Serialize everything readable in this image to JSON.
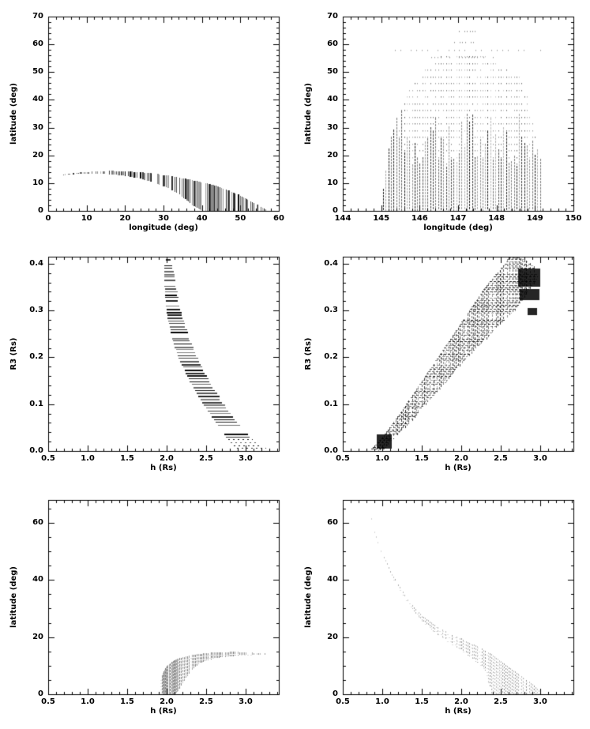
{
  "colors": {
    "foreground": "#000000",
    "background": "#ffffff"
  },
  "chart_data": [
    {
      "type": "scatter",
      "xlabel": "longitude (deg)",
      "ylabel": "latitude (deg)",
      "xlim": [
        0,
        60
      ],
      "ylim": [
        0,
        70
      ],
      "xticks": {
        "values": [
          0,
          10,
          20,
          30,
          40,
          50,
          60
        ],
        "labels": [
          "0",
          "10",
          "20",
          "30",
          "40",
          "50",
          "60"
        ],
        "minor": 2
      },
      "yticks": {
        "values": [
          0,
          10,
          20,
          30,
          40,
          50,
          60,
          70
        ],
        "labels": [
          "0",
          "10",
          "20",
          "30",
          "40",
          "50",
          "60",
          "70"
        ],
        "minor": 2
      },
      "regions": [
        {
          "style": "vband",
          "x": [
            4,
            8,
            12,
            16,
            20,
            24,
            28,
            31,
            34,
            37,
            40,
            44,
            48,
            52,
            55,
            56.5
          ],
          "upper": [
            13.2,
            13.8,
            14.2,
            14.4,
            14.3,
            13.9,
            13.3,
            12.7,
            12.0,
            11.2,
            10.3,
            8.8,
            6.7,
            4.0,
            1.8,
            0.4
          ],
          "lower": [
            12.9,
            13.3,
            13.4,
            13.2,
            12.6,
            11.6,
            9.9,
            8.3,
            5.9,
            2.5,
            0,
            0,
            0,
            0,
            0,
            0
          ],
          "dx": 0.38,
          "skip": 0.35,
          "alpha": [
            0.35,
            1.0
          ],
          "wide_chance": 0.3
        }
      ]
    },
    {
      "type": "scatter",
      "xlabel": "longitude (deg)",
      "ylabel": "latitude (deg)",
      "xlim": [
        144,
        150
      ],
      "ylim": [
        0,
        70
      ],
      "xticks": {
        "values": [
          144,
          145,
          146,
          147,
          148,
          149,
          150
        ],
        "labels": [
          "144",
          "145",
          "146",
          "147",
          "148",
          "149",
          "150"
        ],
        "minor": 0.2
      },
      "yticks": {
        "values": [
          0,
          10,
          20,
          30,
          40,
          50,
          60,
          70
        ],
        "labels": [
          "0",
          "10",
          "20",
          "30",
          "40",
          "50",
          "60",
          "70"
        ],
        "minor": 2
      },
      "regions": [
        {
          "style": "columns",
          "x_start": 145.05,
          "x_end": 149.15,
          "dx": 0.068,
          "envelope_x": [
            145.05,
            145.1,
            145.15,
            145.2,
            145.3,
            145.4,
            145.5,
            145.6,
            145.7,
            145.8,
            145.9,
            146.0,
            146.1,
            146.2,
            146.35,
            146.5,
            146.7,
            146.9,
            147.0,
            147.3,
            147.45,
            147.55,
            147.7,
            147.9,
            148.0,
            148.15,
            148.3,
            148.45,
            148.6,
            148.7,
            148.8,
            148.85,
            148.9,
            149.0,
            149.05,
            149.1,
            149.15
          ],
          "envelope_h": [
            8,
            12,
            19,
            24,
            29,
            34,
            36,
            41,
            43,
            46,
            48,
            49,
            51,
            53,
            53,
            56,
            56,
            56,
            58,
            58,
            58,
            56,
            56,
            55,
            53,
            53,
            51,
            49,
            49,
            44,
            41,
            36,
            34,
            27,
            24,
            20,
            18
          ],
          "solid_to": 26,
          "dot_dy": 2.42,
          "alpha": [
            0.25,
            0.95
          ]
        },
        {
          "style": "rows",
          "rows": [
            {
              "y": 58.0,
              "x1": 145.35,
              "x2": 149.2,
              "dx": 0.14,
              "alpha": 0.4
            },
            {
              "y": 60.8,
              "x1": 146.9,
              "x2": 147.4,
              "dx": 0.07,
              "alpha": 0.45
            },
            {
              "y": 65.0,
              "x1": 146.95,
              "x2": 147.5,
              "dx": 0.07,
              "alpha": 0.45
            },
            {
              "y": 55.6,
              "x1": 146.3,
              "x2": 147.95,
              "dx": 0.08,
              "alpha": 0.4
            }
          ]
        }
      ]
    },
    {
      "type": "scatter",
      "xlabel": "h (Rs)",
      "ylabel": "R3 (Rs)",
      "xlim": [
        0.5,
        3.42
      ],
      "ylim": [
        0,
        0.415
      ],
      "xticks": {
        "values": [
          0.5,
          1.0,
          1.5,
          2.0,
          2.5,
          3.0
        ],
        "labels": [
          "0.5",
          "1.0",
          "1.5",
          "2.0",
          "2.5",
          "3.0"
        ],
        "minor": 0.1
      },
      "yticks": {
        "values": [
          0,
          0.1,
          0.2,
          0.3,
          0.4
        ],
        "labels": [
          "0.0",
          "0.1",
          "0.2",
          "0.3",
          "0.4"
        ],
        "minor": 0.02
      },
      "regions": [
        {
          "style": "hband",
          "y": [
            0.0,
            0.02,
            0.05,
            0.08,
            0.1,
            0.13,
            0.15,
            0.18,
            0.2,
            0.23,
            0.25,
            0.28,
            0.3,
            0.33,
            0.35,
            0.38,
            0.4,
            0.413
          ],
          "left": [
            2.93,
            2.8,
            2.67,
            2.55,
            2.47,
            2.36,
            2.29,
            2.21,
            2.15,
            2.09,
            2.06,
            2.02,
            2.0,
            1.98,
            1.975,
            1.97,
            1.975,
            1.99
          ],
          "right": [
            3.32,
            3.1,
            2.94,
            2.8,
            2.72,
            2.6,
            2.53,
            2.44,
            2.38,
            2.3,
            2.26,
            2.2,
            2.17,
            2.13,
            2.11,
            2.08,
            2.05,
            2.02
          ],
          "dy": 0.0062,
          "skip": 0.12,
          "alpha": [
            0.45,
            1.0
          ],
          "dash_below": 0.028
        }
      ]
    },
    {
      "type": "scatter",
      "xlabel": "h (Rs)",
      "ylabel": "R3 (Rs)",
      "xlim": [
        0.5,
        3.42
      ],
      "ylim": [
        0,
        0.415
      ],
      "xticks": {
        "values": [
          0.5,
          1.0,
          1.5,
          2.0,
          2.5,
          3.0
        ],
        "labels": [
          "0.5",
          "1.0",
          "1.5",
          "2.0",
          "2.5",
          "3.0"
        ],
        "minor": 0.1
      },
      "yticks": {
        "values": [
          0,
          0.1,
          0.2,
          0.3,
          0.4
        ],
        "labels": [
          "0.0",
          "0.1",
          "0.2",
          "0.3",
          "0.4"
        ],
        "minor": 0.02
      },
      "regions": [
        {
          "style": "crosshatch",
          "y": [
            0.0,
            0.02,
            0.05,
            0.08,
            0.1,
            0.13,
            0.15,
            0.18,
            0.2,
            0.23,
            0.25,
            0.28,
            0.3,
            0.33,
            0.35,
            0.375,
            0.4,
            0.415
          ],
          "left": [
            0.83,
            0.95,
            1.09,
            1.22,
            1.3,
            1.42,
            1.5,
            1.62,
            1.7,
            1.82,
            1.9,
            2.02,
            2.1,
            2.22,
            2.3,
            2.42,
            2.55,
            2.6
          ],
          "right": [
            1.0,
            1.1,
            1.28,
            1.45,
            1.55,
            1.72,
            1.82,
            1.97,
            2.07,
            2.25,
            2.37,
            2.55,
            2.67,
            2.82,
            2.9,
            2.98,
            2.9,
            2.72
          ],
          "dy": 0.0046,
          "dx": 0.024,
          "skip": 0.15,
          "alpha": [
            0.3,
            0.9
          ],
          "blobs": [
            {
              "x1": 2.72,
              "x2": 3.0,
              "y1": 0.352,
              "y2": 0.39
            },
            {
              "x1": 2.74,
              "x2": 2.99,
              "y1": 0.322,
              "y2": 0.345
            },
            {
              "x1": 2.84,
              "x2": 2.96,
              "y1": 0.291,
              "y2": 0.306
            },
            {
              "x1": 0.93,
              "x2": 1.12,
              "y1": 0.005,
              "y2": 0.035
            }
          ]
        }
      ]
    },
    {
      "type": "scatter",
      "xlabel": "h (Rs)",
      "ylabel": "latitude (deg)",
      "xlim": [
        0.5,
        3.42
      ],
      "ylim": [
        0,
        68
      ],
      "xticks": {
        "values": [
          0.5,
          1.0,
          1.5,
          2.0,
          2.5,
          3.0
        ],
        "labels": [
          "0.5",
          "1.0",
          "1.5",
          "2.0",
          "2.5",
          "3.0"
        ],
        "minor": 0.1
      },
      "yticks": {
        "values": [
          0,
          20,
          40,
          60
        ],
        "labels": [
          "0",
          "20",
          "40",
          "60"
        ],
        "minor": 5
      },
      "regions": [
        {
          "style": "vband",
          "x": [
            1.92,
            1.96,
            2.0,
            2.05,
            2.1,
            2.15,
            2.2,
            2.3,
            2.4,
            2.5,
            2.6,
            2.7,
            2.8,
            2.9,
            3.0,
            3.1,
            3.2,
            3.28
          ],
          "lower": [
            0,
            0,
            0,
            0,
            0,
            1.5,
            4.0,
            8.0,
            10.5,
            11.8,
            12.6,
            13.0,
            13.3,
            13.5,
            13.6,
            13.8,
            13.9,
            14.0
          ],
          "upper": [
            5.5,
            8.0,
            10.0,
            11.0,
            12.0,
            12.6,
            13.0,
            13.6,
            14.1,
            14.4,
            14.6,
            14.7,
            14.8,
            14.8,
            14.6,
            14.5,
            14.4,
            14.3
          ],
          "dx": 0.02,
          "skip": 0.22,
          "alpha": [
            0.3,
            0.6
          ],
          "dash": [
            3,
            1
          ],
          "crossrows_dy": 1.1,
          "tail_from": 3.0,
          "tail_skip": 0.65,
          "dark_region": {
            "x1": 1.95,
            "x2": 2.17
          }
        }
      ]
    },
    {
      "type": "scatter",
      "xlabel": "h (Rs)",
      "ylabel": "latitude (deg)",
      "xlim": [
        0.5,
        3.42
      ],
      "ylim": [
        0,
        68
      ],
      "xticks": {
        "values": [
          0.5,
          1.0,
          1.5,
          2.0,
          2.5,
          3.0
        ],
        "labels": [
          "0.5",
          "1.0",
          "1.5",
          "2.0",
          "2.5",
          "3.0"
        ],
        "minor": 0.1
      },
      "yticks": {
        "values": [
          0,
          20,
          40,
          60
        ],
        "labels": [
          "0",
          "20",
          "40",
          "60"
        ],
        "minor": 5
      },
      "regions": [
        {
          "style": "vband",
          "x": [
            0.84,
            0.9,
            0.95,
            1.0,
            1.05,
            1.1,
            1.2,
            1.3,
            1.4,
            1.5,
            1.6,
            1.7,
            1.8,
            1.9,
            2.0,
            2.1,
            2.2,
            2.3,
            2.38,
            2.5,
            2.6,
            2.7,
            2.8,
            2.9,
            3.0
          ],
          "upper": [
            64,
            57,
            52.5,
            49,
            46.5,
            43,
            38.5,
            34,
            30.5,
            27.5,
            25.5,
            23.5,
            22,
            20.5,
            19.5,
            18,
            16.8,
            15.3,
            14,
            11.5,
            9.5,
            7.5,
            5.5,
            3.5,
            1.0
          ],
          "lower": [
            63.2,
            56.2,
            51.7,
            48.2,
            45.6,
            42,
            37.5,
            32.8,
            29,
            25.5,
            23.2,
            20.7,
            18.8,
            16.9,
            15.3,
            13.2,
            11,
            8.3,
            0,
            0,
            0,
            0,
            0,
            0,
            0
          ],
          "dx": 0.02,
          "skip": 0.3,
          "alpha": [
            0.2,
            0.45
          ],
          "dash": [
            2,
            2
          ],
          "crossrows_dy": 1.2
        }
      ]
    }
  ]
}
